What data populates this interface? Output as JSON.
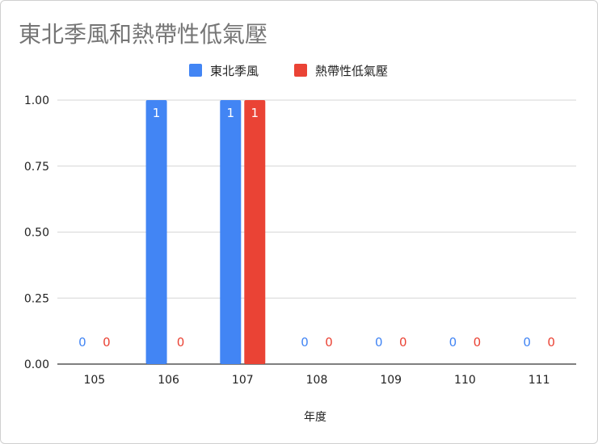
{
  "chart_data": {
    "type": "bar",
    "title": "東北季風和熱帶性低氣壓",
    "xlabel": "年度",
    "ylabel": "",
    "categories": [
      "105",
      "106",
      "107",
      "108",
      "109",
      "110",
      "111"
    ],
    "series": [
      {
        "name": "東北季風",
        "color": "#4285f4",
        "values": [
          0,
          1,
          1,
          0,
          0,
          0,
          0
        ]
      },
      {
        "name": "熱帶性低氣壓",
        "color": "#ea4335",
        "values": [
          0,
          0,
          1,
          0,
          0,
          0,
          0
        ]
      }
    ],
    "ylim": [
      0,
      1
    ],
    "yticks": [
      "0.00",
      "0.25",
      "0.50",
      "0.75",
      "1.00"
    ],
    "legend_position": "top",
    "grid": true
  }
}
